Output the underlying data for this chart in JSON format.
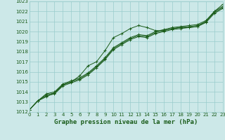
{
  "xlabel": "Graphe pression niveau de la mer (hPa)",
  "ylim": [
    1012,
    1023
  ],
  "xlim": [
    0,
    23
  ],
  "yticks": [
    1012,
    1013,
    1014,
    1015,
    1016,
    1017,
    1018,
    1019,
    1020,
    1021,
    1022,
    1023
  ],
  "xticks": [
    0,
    1,
    2,
    3,
    4,
    5,
    6,
    7,
    8,
    9,
    10,
    11,
    12,
    13,
    14,
    15,
    16,
    17,
    18,
    19,
    20,
    21,
    22,
    23
  ],
  "bg_color": "#cce8e8",
  "grid_color": "#99cccc",
  "line_color": "#1a5c1a",
  "line1": [
    1012.2,
    1013.1,
    1013.5,
    1013.9,
    1014.7,
    1015.0,
    1015.6,
    1016.6,
    1017.0,
    1018.1,
    1019.4,
    1019.8,
    1020.3,
    1020.6,
    1020.4,
    1020.1,
    1020.1,
    1020.3,
    1020.4,
    1020.4,
    1020.5,
    1021.0,
    1022.0,
    1022.7
  ],
  "line2": [
    1012.2,
    1013.1,
    1013.8,
    1014.0,
    1014.8,
    1015.1,
    1015.4,
    1015.9,
    1016.6,
    1017.4,
    1018.4,
    1018.9,
    1019.4,
    1019.7,
    1019.6,
    1020.0,
    1020.2,
    1020.4,
    1020.5,
    1020.6,
    1020.7,
    1021.1,
    1022.0,
    1022.5
  ],
  "line3": [
    1012.2,
    1013.1,
    1013.7,
    1013.9,
    1014.7,
    1015.0,
    1015.3,
    1015.8,
    1016.5,
    1017.3,
    1018.3,
    1018.8,
    1019.3,
    1019.6,
    1019.5,
    1019.9,
    1020.1,
    1020.3,
    1020.4,
    1020.5,
    1020.6,
    1021.0,
    1021.9,
    1022.4
  ],
  "line4": [
    1012.2,
    1013.1,
    1013.6,
    1013.8,
    1014.6,
    1014.9,
    1015.2,
    1015.7,
    1016.4,
    1017.2,
    1018.2,
    1018.7,
    1019.2,
    1019.5,
    1019.4,
    1019.8,
    1020.0,
    1020.2,
    1020.3,
    1020.4,
    1020.5,
    1020.9,
    1021.8,
    1022.3
  ]
}
